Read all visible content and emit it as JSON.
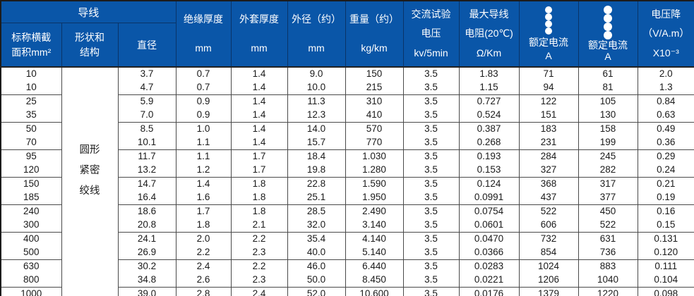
{
  "colors": {
    "header_bg": "#0a56a8",
    "header_divider": "#0a3468",
    "header_text": "#ffffff",
    "body_border": "#4a4a4a",
    "outer_border": "#1c1c1c",
    "body_text": "#1a1a1a"
  },
  "table": {
    "conductor_group_label": "导线",
    "columns": {
      "area": "标称横截\n面积mm²",
      "shape": "形状和\n结构",
      "diameter": "直径",
      "insulation": [
        "绝缘厚度",
        "mm"
      ],
      "sheath": [
        "外套厚度",
        "mm"
      ],
      "outer_diameter": [
        "外径（约）",
        "mm"
      ],
      "weight": [
        "重量（约）",
        "kg/km"
      ],
      "ac_test_voltage": [
        "交流试验",
        "电压",
        "kv/5min"
      ],
      "max_resistance": [
        "最大导线",
        "电阻(20℃)",
        "Ω/Km"
      ],
      "rated_current_flat": [
        "额定电流",
        "A"
      ],
      "rated_current_grid": [
        "额定电流",
        "A"
      ],
      "voltage_drop": [
        "电压降",
        "（V/A.m）",
        "X10⁻³"
      ]
    },
    "icons": {
      "flat": "four-dots-row-icon",
      "grid": "four-dots-grid-icon"
    },
    "shape_value": "圆形\n紧密\n绞线",
    "rows": [
      [
        "10",
        "3.7",
        "0.7",
        "1.4",
        "9.0",
        "150",
        "3.5",
        "1.83",
        "71",
        "61",
        "2.0"
      ],
      [
        "10",
        "4.7",
        "0.7",
        "1.4",
        "10.0",
        "215",
        "3.5",
        "1.15",
        "94",
        "81",
        "1.3"
      ],
      [
        "25",
        "5.9",
        "0.9",
        "1.4",
        "11.3",
        "310",
        "3.5",
        "0.727",
        "122",
        "105",
        "0.84"
      ],
      [
        "35",
        "7.0",
        "0.9",
        "1.4",
        "12.3",
        "410",
        "3.5",
        "0.524",
        "151",
        "130",
        "0.63"
      ],
      [
        "50",
        "8.5",
        "1.0",
        "1.4",
        "14.0",
        "570",
        "3.5",
        "0.387",
        "183",
        "158",
        "0.49"
      ],
      [
        "70",
        "10.1",
        "1.1",
        "1.4",
        "15.7",
        "770",
        "3.5",
        "0.268",
        "231",
        "199",
        "0.36"
      ],
      [
        "95",
        "11.7",
        "1.1",
        "1.7",
        "18.4",
        "1.030",
        "3.5",
        "0.193",
        "284",
        "245",
        "0.29"
      ],
      [
        "120",
        "13.2",
        "1.2",
        "1.7",
        "19.8",
        "1.280",
        "3.5",
        "0.153",
        "327",
        "282",
        "0.24"
      ],
      [
        "150",
        "14.7",
        "1.4",
        "1.8",
        "22.8",
        "1.590",
        "3.5",
        "0.124",
        "368",
        "317",
        "0.21"
      ],
      [
        "185",
        "16.4",
        "1.6",
        "1.8",
        "25.1",
        "1.950",
        "3.5",
        "0.0991",
        "437",
        "377",
        "0.19"
      ],
      [
        "240",
        "18.6",
        "1.7",
        "1.8",
        "28.5",
        "2.490",
        "3.5",
        "0.0754",
        "522",
        "450",
        "0.16"
      ],
      [
        "300",
        "20.8",
        "1.8",
        "2.1",
        "32.0",
        "3.140",
        "3.5",
        "0.0601",
        "606",
        "522",
        "0.15"
      ],
      [
        "400",
        "24.1",
        "2.0",
        "2.2",
        "35.4",
        "4.140",
        "3.5",
        "0.0470",
        "732",
        "631",
        "0.131"
      ],
      [
        "500",
        "26.9",
        "2.2",
        "2.3",
        "40.0",
        "5.140",
        "3.5",
        "0.0366",
        "854",
        "736",
        "0.120"
      ],
      [
        "630",
        "30.2",
        "2.4",
        "2.2",
        "46.0",
        "6.440",
        "3.5",
        "0.0283",
        "1024",
        "883",
        "0.111"
      ],
      [
        "800",
        "34.8",
        "2.6",
        "2.3",
        "50.0",
        "8.450",
        "3.5",
        "0.0221",
        "1206",
        "1040",
        "0.104"
      ],
      [
        "1000",
        "39.0",
        "2.8",
        "2.4",
        "52.0",
        "10.600",
        "3.5",
        "0.0176",
        "1379",
        "1220",
        "0.098"
      ]
    ]
  }
}
